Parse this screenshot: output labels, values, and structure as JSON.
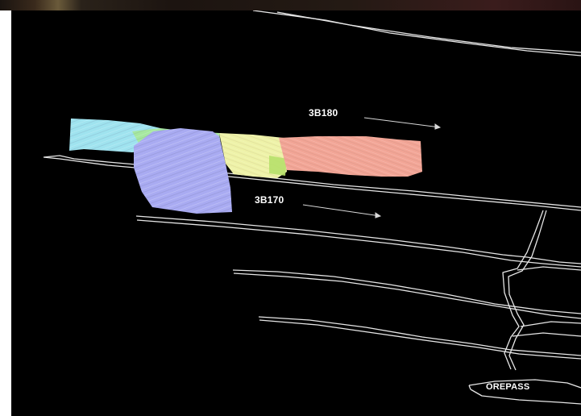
{
  "labels": {
    "level_upper": "3B180",
    "level_lower": "3B170",
    "orepass": "OREPASS"
  },
  "colors": {
    "background": "#000000",
    "drive_outlines": "#e8e8e8",
    "stope_cyan": "#9fe3ef",
    "stope_green": "#9ee89a",
    "stope_blue": "#a7a9f0",
    "stope_yellow": "#eef2a8",
    "stope_salmon": "#f2a496"
  }
}
